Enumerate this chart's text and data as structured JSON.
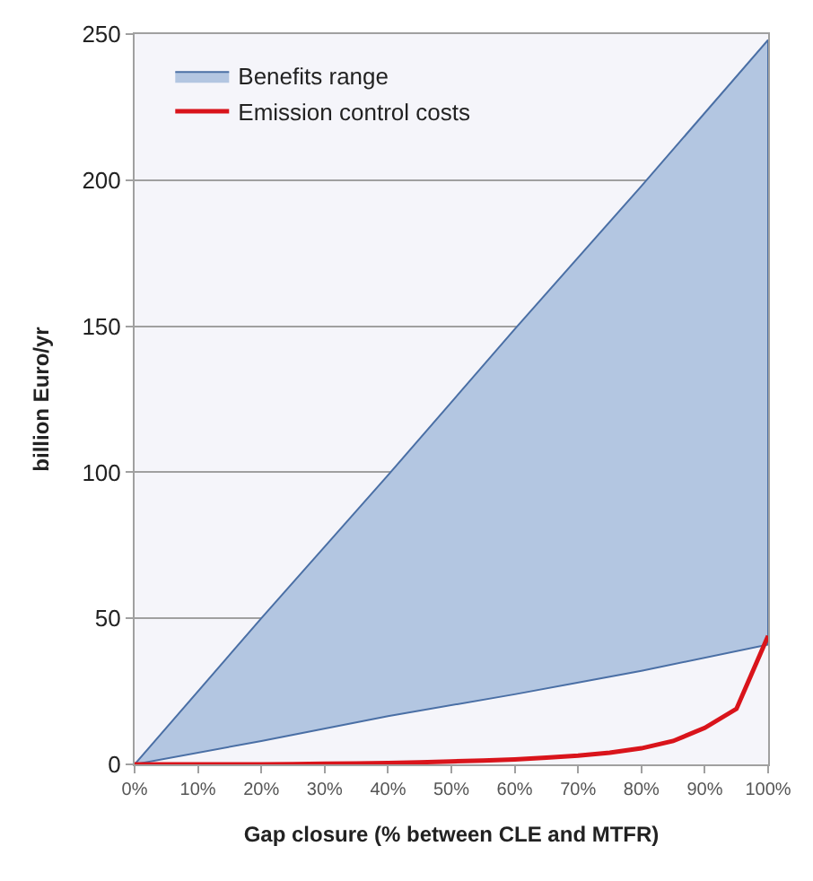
{
  "chart_data": {
    "type": "area",
    "xlabel": "Gap closure (% between CLE and MTFR)",
    "ylabel": "billion Euro/yr",
    "xlim": [
      0,
      100
    ],
    "xticks": [
      {
        "value": 0,
        "label": "0%"
      },
      {
        "value": 10,
        "label": "10%"
      },
      {
        "value": 20,
        "label": "20%"
      },
      {
        "value": 30,
        "label": "30%"
      },
      {
        "value": 40,
        "label": "40%"
      },
      {
        "value": 50,
        "label": "50%"
      },
      {
        "value": 60,
        "label": "60%"
      },
      {
        "value": 70,
        "label": "70%"
      },
      {
        "value": 80,
        "label": "80%"
      },
      {
        "value": 90,
        "label": "90%"
      },
      {
        "value": 100,
        "label": "100%"
      }
    ],
    "ylim": [
      0,
      250
    ],
    "yticks": [
      0,
      50,
      100,
      150,
      200,
      250
    ],
    "grid": "y",
    "legend": "top left",
    "series": [
      {
        "name": "Benefits range",
        "color": "#b3c6e1",
        "x": [
          0,
          20,
          40,
          60,
          80,
          100
        ],
        "values": [
          null,
          null,
          null,
          null,
          null,
          null
        ],
        "lower": [
          0,
          8,
          16.5,
          24,
          32,
          41
        ],
        "upper": [
          0,
          50,
          99,
          149,
          198,
          248
        ]
      },
      {
        "name": "Emission control costs",
        "type": "line",
        "color": "#d9141b",
        "x": [
          0,
          5,
          10,
          15,
          20,
          25,
          30,
          35,
          40,
          45,
          50,
          55,
          60,
          65,
          70,
          75,
          80,
          85,
          90,
          95,
          100
        ],
        "values": [
          0,
          0,
          0,
          0,
          0,
          0.1,
          0.2,
          0.3,
          0.5,
          0.7,
          1,
          1.3,
          1.7,
          2.3,
          3,
          4,
          5.5,
          8,
          12.5,
          19,
          44
        ]
      }
    ]
  }
}
